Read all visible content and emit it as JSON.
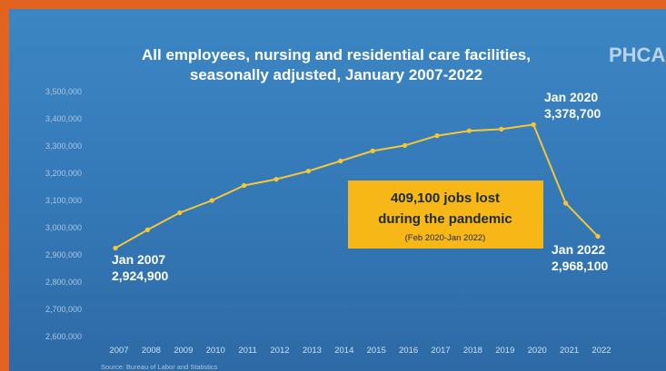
{
  "logo": {
    "text": "PHCA"
  },
  "chart_data": {
    "type": "line",
    "title_lines": [
      "All employees, nursing and residential care facilities,",
      "seasonally adjusted, January 2007-2022"
    ],
    "categories": [
      "2007",
      "2008",
      "2009",
      "2010",
      "2011",
      "2012",
      "2013",
      "2014",
      "2015",
      "2016",
      "2017",
      "2018",
      "2019",
      "2020",
      "2021",
      "2022"
    ],
    "values": [
      2924900,
      2992000,
      3055000,
      3100000,
      3155000,
      3178000,
      3208000,
      3245000,
      3282000,
      3302000,
      3338000,
      3356000,
      3362000,
      3378700,
      3090000,
      2968100
    ],
    "y_ticks": [
      "3,500,000",
      "3,400,000",
      "3,300,000",
      "3,200,000",
      "3,100,000",
      "3,000,000",
      "2,900,000",
      "2,800,000",
      "2,700,000",
      "2,600,000"
    ],
    "ylim": [
      2600000,
      3500000
    ],
    "y_step": 100000,
    "grid": false,
    "legend": "none",
    "line_color": "#f6c637",
    "annotations": {
      "start": {
        "label": "Jan 2007",
        "value": "2,924,900"
      },
      "peak": {
        "label": "Jan 2020",
        "value": "3,378,700"
      },
      "end": {
        "label": "Jan 2022",
        "value": "2,968,100"
      }
    },
    "callout": {
      "line1": "409,100 jobs lost",
      "line2": "during the pandemic",
      "line3": "(Feb 2020-Jan 2022)",
      "color": "#f6b717"
    }
  },
  "source": "Source: Bureau of Labor and Statistics"
}
